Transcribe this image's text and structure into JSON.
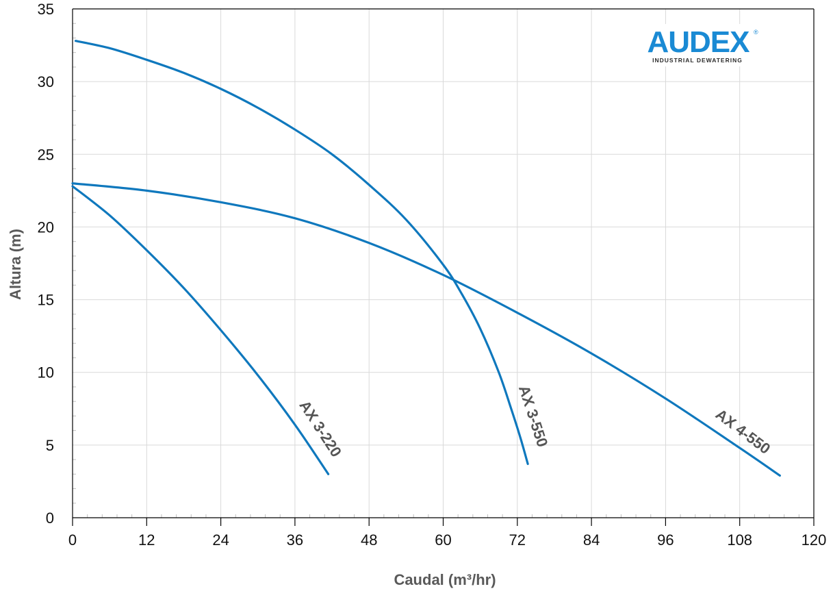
{
  "chart_data": {
    "type": "line",
    "xlabel": "Caudal (m³/hr)",
    "ylabel": "Altura (m)",
    "xlim": [
      0,
      120
    ],
    "ylim": [
      0,
      35
    ],
    "xticks": [
      0,
      12,
      24,
      36,
      48,
      60,
      72,
      84,
      96,
      108,
      120
    ],
    "yticks": [
      0,
      5,
      10,
      15,
      20,
      25,
      30,
      35
    ],
    "grid": true,
    "series": [
      {
        "name": "AX 3-220",
        "color": "#0f78bd",
        "x": [
          0,
          6,
          12,
          18,
          24,
          30,
          36,
          41.4
        ],
        "y": [
          22.8,
          20.8,
          18.4,
          15.8,
          12.9,
          9.8,
          6.4,
          3.0
        ]
      },
      {
        "name": "AX 3-550",
        "color": "#0f78bd",
        "x": [
          0.5,
          6,
          12,
          18,
          24,
          30,
          36,
          42,
          48,
          54,
          60,
          63,
          66,
          69,
          71,
          72.5,
          73.7
        ],
        "y": [
          32.8,
          32.3,
          31.5,
          30.6,
          29.5,
          28.2,
          26.7,
          25.0,
          22.9,
          20.5,
          17.4,
          15.4,
          13.0,
          10.0,
          7.5,
          5.5,
          3.7
        ]
      },
      {
        "name": "AX 4-550",
        "color": "#0f78bd",
        "x": [
          0,
          12,
          24,
          36,
          48,
          60,
          72,
          84,
          96,
          108,
          114.5
        ],
        "y": [
          23.0,
          22.5,
          21.7,
          20.6,
          18.9,
          16.7,
          14.1,
          11.3,
          8.2,
          4.8,
          2.9
        ]
      }
    ]
  },
  "logo": {
    "brand": "AUDEX",
    "registered": "®",
    "tagline": "INDUSTRIAL DEWATERING",
    "color": "#1a8ad4"
  }
}
